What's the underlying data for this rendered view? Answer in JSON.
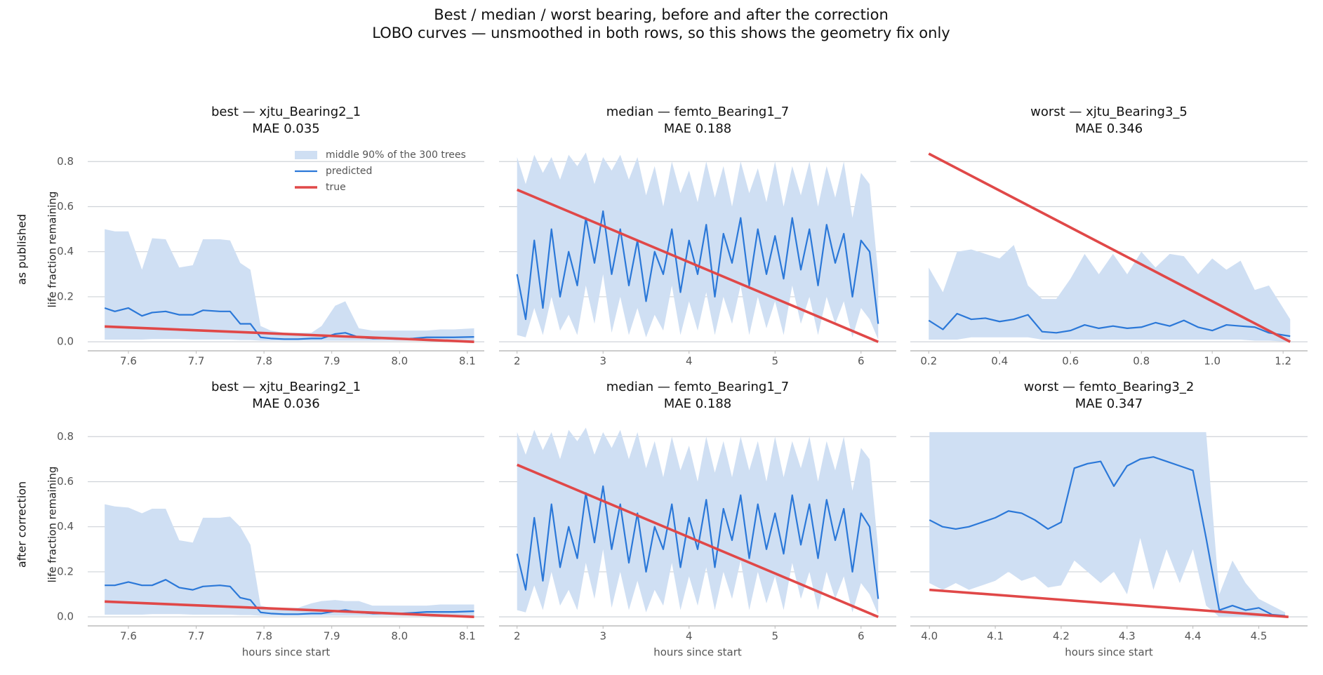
{
  "title": "Best / median / worst bearing, before and after the correction",
  "subtitle": "LOBO curves — unsmoothed in both rows, so this shows the geometry fix only",
  "row_labels": [
    "as published",
    "after correction"
  ],
  "chart_data": [
    {
      "type": "line",
      "title": "best — xjtu_Bearing2_1",
      "subtitle": "MAE 0.035",
      "ylabel": "life fraction remaining",
      "legend": "upper right",
      "x": [
        7.565,
        7.58,
        7.6,
        7.62,
        7.635,
        7.655,
        7.675,
        7.695,
        7.71,
        7.735,
        7.75,
        7.765,
        7.78,
        7.795,
        7.81,
        7.83,
        7.85,
        7.87,
        7.885,
        7.905,
        7.92,
        7.94,
        7.96,
        7.98,
        8.0,
        8.02,
        8.04,
        8.06,
        8.08,
        8.11
      ],
      "band": {
        "name": "middle 90% of the 300 trees",
        "color": "#cfdff3",
        "upper": [
          0.5,
          0.49,
          0.49,
          0.32,
          0.46,
          0.455,
          0.33,
          0.34,
          0.455,
          0.455,
          0.45,
          0.35,
          0.32,
          0.07,
          0.05,
          0.04,
          0.04,
          0.04,
          0.07,
          0.16,
          0.18,
          0.06,
          0.05,
          0.05,
          0.05,
          0.05,
          0.05,
          0.055,
          0.055,
          0.06
        ],
        "lower": [
          0.01,
          0.01,
          0.01,
          0.01,
          0.012,
          0.012,
          0.012,
          0.01,
          0.01,
          0.01,
          0.01,
          0.008,
          0.008,
          0.005,
          0.005,
          0.005,
          0.005,
          0.005,
          0.005,
          0.005,
          0.005,
          0.005,
          0.005,
          0.005,
          0.005,
          0.005,
          0.005,
          0.005,
          0.005,
          0.005
        ]
      },
      "series": [
        {
          "name": "predicted",
          "color": "#2b78d8",
          "values": [
            0.15,
            0.135,
            0.15,
            0.115,
            0.13,
            0.135,
            0.12,
            0.12,
            0.14,
            0.135,
            0.135,
            0.08,
            0.08,
            0.02,
            0.015,
            0.012,
            0.012,
            0.015,
            0.015,
            0.035,
            0.04,
            0.02,
            0.015,
            0.015,
            0.012,
            0.015,
            0.02,
            0.02,
            0.02,
            0.022
          ]
        },
        {
          "name": "true",
          "color": "#e04848",
          "x": [
            7.565,
            8.11
          ],
          "values": [
            0.068,
            0
          ]
        }
      ],
      "xlim": [
        7.54,
        8.125
      ],
      "ylim": [
        -0.04,
        0.86
      ],
      "xticks": [
        7.6,
        7.7,
        7.8,
        7.9,
        {
          "value": 8.0,
          "label": "8.0"
        },
        8.1
      ],
      "yticks": [
        {
          "value": 0,
          "label": "0.0"
        },
        0.2,
        0.4,
        0.6,
        0.8
      ],
      "grid": true
    },
    {
      "type": "line",
      "title": "median — femto_Bearing1_7",
      "subtitle": "MAE 0.188",
      "x": [
        2.0,
        2.1,
        2.2,
        2.3,
        2.4,
        2.5,
        2.6,
        2.7,
        2.8,
        2.9,
        3.0,
        3.1,
        3.2,
        3.3,
        3.4,
        3.5,
        3.6,
        3.7,
        3.8,
        3.9,
        4.0,
        4.1,
        4.2,
        4.3,
        4.4,
        4.5,
        4.6,
        4.7,
        4.8,
        4.9,
        5.0,
        5.1,
        5.2,
        5.3,
        5.4,
        5.5,
        5.6,
        5.7,
        5.8,
        5.9,
        6.0,
        6.1,
        6.2
      ],
      "band": {
        "color": "#cfdff3",
        "upper": [
          0.82,
          0.7,
          0.83,
          0.75,
          0.82,
          0.72,
          0.83,
          0.78,
          0.84,
          0.7,
          0.82,
          0.76,
          0.83,
          0.72,
          0.82,
          0.65,
          0.78,
          0.6,
          0.8,
          0.66,
          0.76,
          0.62,
          0.8,
          0.64,
          0.78,
          0.6,
          0.8,
          0.66,
          0.77,
          0.62,
          0.8,
          0.6,
          0.78,
          0.65,
          0.8,
          0.6,
          0.78,
          0.64,
          0.8,
          0.55,
          0.75,
          0.7,
          0.3
        ],
        "lower": [
          0.03,
          0.02,
          0.15,
          0.03,
          0.2,
          0.05,
          0.12,
          0.03,
          0.25,
          0.08,
          0.3,
          0.04,
          0.2,
          0.03,
          0.15,
          0.02,
          0.12,
          0.05,
          0.25,
          0.03,
          0.18,
          0.05,
          0.22,
          0.03,
          0.2,
          0.08,
          0.25,
          0.03,
          0.2,
          0.06,
          0.18,
          0.03,
          0.25,
          0.08,
          0.2,
          0.03,
          0.2,
          0.08,
          0.18,
          0.02,
          0.15,
          0.1,
          0.01
        ]
      },
      "series": [
        {
          "color": "#2b78d8",
          "values": [
            0.3,
            0.1,
            0.45,
            0.15,
            0.5,
            0.2,
            0.4,
            0.25,
            0.55,
            0.35,
            0.58,
            0.3,
            0.5,
            0.25,
            0.45,
            0.18,
            0.4,
            0.3,
            0.5,
            0.22,
            0.45,
            0.3,
            0.52,
            0.2,
            0.48,
            0.35,
            0.55,
            0.25,
            0.5,
            0.3,
            0.47,
            0.28,
            0.55,
            0.32,
            0.5,
            0.25,
            0.52,
            0.35,
            0.48,
            0.2,
            0.45,
            0.4,
            0.08
          ]
        },
        {
          "color": "#e04848",
          "x": [
            2.0,
            6.2
          ],
          "values": [
            0.675,
            0
          ]
        }
      ],
      "xlim": [
        1.79,
        6.41
      ],
      "ylim": [
        -0.04,
        0.86
      ],
      "xticks": [
        2,
        3,
        4,
        5,
        6
      ],
      "yticks": [
        {
          "value": 0,
          "label": "0.0"
        },
        0.2,
        0.4,
        0.6,
        0.8
      ],
      "grid": true
    },
    {
      "type": "line",
      "title": "worst — xjtu_Bearing3_5",
      "subtitle": "MAE 0.346",
      "x": [
        0.2,
        0.24,
        0.28,
        0.32,
        0.36,
        0.4,
        0.44,
        0.48,
        0.52,
        0.56,
        0.6,
        0.64,
        0.68,
        0.72,
        0.76,
        0.8,
        0.84,
        0.88,
        0.92,
        0.96,
        1.0,
        1.04,
        1.08,
        1.12,
        1.16,
        1.22
      ],
      "band": {
        "color": "#cfdff3",
        "upper": [
          0.33,
          0.22,
          0.4,
          0.41,
          0.39,
          0.37,
          0.43,
          0.25,
          0.19,
          0.19,
          0.28,
          0.39,
          0.3,
          0.39,
          0.3,
          0.4,
          0.33,
          0.39,
          0.38,
          0.3,
          0.37,
          0.32,
          0.36,
          0.23,
          0.25,
          0.1
        ],
        "lower": [
          0.01,
          0.01,
          0.01,
          0.02,
          0.02,
          0.02,
          0.02,
          0.02,
          0.01,
          0.01,
          0.01,
          0.01,
          0.01,
          0.01,
          0.01,
          0.01,
          0.01,
          0.01,
          0.01,
          0.01,
          0.01,
          0.01,
          0.01,
          0.005,
          0.005,
          0.0
        ]
      },
      "series": [
        {
          "color": "#2b78d8",
          "values": [
            0.095,
            0.055,
            0.125,
            0.1,
            0.105,
            0.09,
            0.1,
            0.12,
            0.045,
            0.04,
            0.05,
            0.075,
            0.06,
            0.07,
            0.06,
            0.065,
            0.085,
            0.07,
            0.095,
            0.065,
            0.05,
            0.075,
            0.07,
            0.065,
            0.04,
            0.025
          ]
        },
        {
          "color": "#e04848",
          "x": [
            0.2,
            1.22
          ],
          "values": [
            0.835,
            0
          ]
        }
      ],
      "xlim": [
        0.148,
        1.269
      ],
      "ylim": [
        -0.04,
        0.86
      ],
      "xticks": [
        0.2,
        0.4,
        0.6,
        0.8,
        {
          "value": 1.0,
          "label": "1.0"
        },
        1.2
      ],
      "yticks": [
        {
          "value": 0,
          "label": "0.0"
        },
        0.2,
        0.4,
        0.6,
        0.8
      ],
      "grid": true
    },
    {
      "type": "line",
      "title": "best — xjtu_Bearing2_1",
      "subtitle": "MAE 0.036",
      "ylabel": "life fraction remaining",
      "xlabel": "hours since start",
      "x": [
        7.565,
        7.58,
        7.6,
        7.62,
        7.635,
        7.655,
        7.675,
        7.695,
        7.71,
        7.735,
        7.75,
        7.765,
        7.78,
        7.795,
        7.81,
        7.83,
        7.85,
        7.87,
        7.885,
        7.905,
        7.92,
        7.94,
        7.96,
        7.98,
        8.0,
        8.02,
        8.04,
        8.06,
        8.08,
        8.11
      ],
      "band": {
        "color": "#cfdff3",
        "upper": [
          0.5,
          0.49,
          0.485,
          0.46,
          0.48,
          0.48,
          0.34,
          0.33,
          0.44,
          0.44,
          0.445,
          0.4,
          0.32,
          0.05,
          0.04,
          0.04,
          0.04,
          0.06,
          0.07,
          0.075,
          0.07,
          0.07,
          0.05,
          0.05,
          0.05,
          0.05,
          0.05,
          0.055,
          0.055,
          0.055
        ],
        "lower": [
          0.01,
          0.01,
          0.01,
          0.01,
          0.012,
          0.012,
          0.012,
          0.01,
          0.01,
          0.01,
          0.01,
          0.008,
          0.008,
          0.005,
          0.005,
          0.005,
          0.005,
          0.005,
          0.005,
          0.005,
          0.005,
          0.005,
          0.005,
          0.005,
          0.005,
          0.005,
          0.005,
          0.005,
          0.005,
          0.005
        ]
      },
      "series": [
        {
          "color": "#2b78d8",
          "values": [
            0.14,
            0.14,
            0.155,
            0.14,
            0.14,
            0.165,
            0.13,
            0.12,
            0.135,
            0.14,
            0.135,
            0.085,
            0.075,
            0.02,
            0.015,
            0.012,
            0.012,
            0.015,
            0.015,
            0.025,
            0.03,
            0.02,
            0.015,
            0.015,
            0.015,
            0.018,
            0.022,
            0.022,
            0.022,
            0.025
          ]
        },
        {
          "color": "#e04848",
          "x": [
            7.565,
            8.11
          ],
          "values": [
            0.068,
            0
          ]
        }
      ],
      "xlim": [
        7.54,
        8.125
      ],
      "ylim": [
        -0.04,
        0.86
      ],
      "xticks": [
        7.6,
        7.7,
        7.8,
        7.9,
        {
          "value": 8.0,
          "label": "8.0"
        },
        8.1
      ],
      "yticks": [
        {
          "value": 0,
          "label": "0.0"
        },
        0.2,
        0.4,
        0.6,
        0.8
      ],
      "grid": true
    },
    {
      "type": "line",
      "title": "median — femto_Bearing1_7",
      "subtitle": "MAE 0.188",
      "xlabel": "hours since start",
      "x": [
        2.0,
        2.1,
        2.2,
        2.3,
        2.4,
        2.5,
        2.6,
        2.7,
        2.8,
        2.9,
        3.0,
        3.1,
        3.2,
        3.3,
        3.4,
        3.5,
        3.6,
        3.7,
        3.8,
        3.9,
        4.0,
        4.1,
        4.2,
        4.3,
        4.4,
        4.5,
        4.6,
        4.7,
        4.8,
        4.9,
        5.0,
        5.1,
        5.2,
        5.3,
        5.4,
        5.5,
        5.6,
        5.7,
        5.8,
        5.9,
        6.0,
        6.1,
        6.2
      ],
      "band": {
        "color": "#cfdff3",
        "upper": [
          0.82,
          0.72,
          0.83,
          0.74,
          0.82,
          0.7,
          0.83,
          0.78,
          0.84,
          0.72,
          0.82,
          0.75,
          0.83,
          0.7,
          0.82,
          0.66,
          0.78,
          0.62,
          0.8,
          0.65,
          0.76,
          0.6,
          0.8,
          0.64,
          0.78,
          0.62,
          0.8,
          0.65,
          0.78,
          0.6,
          0.8,
          0.62,
          0.78,
          0.66,
          0.8,
          0.6,
          0.78,
          0.65,
          0.8,
          0.56,
          0.75,
          0.7,
          0.3
        ],
        "lower": [
          0.03,
          0.02,
          0.14,
          0.03,
          0.2,
          0.05,
          0.12,
          0.03,
          0.24,
          0.08,
          0.3,
          0.04,
          0.2,
          0.03,
          0.16,
          0.02,
          0.12,
          0.05,
          0.24,
          0.03,
          0.18,
          0.05,
          0.22,
          0.03,
          0.2,
          0.08,
          0.25,
          0.03,
          0.2,
          0.06,
          0.18,
          0.03,
          0.24,
          0.08,
          0.2,
          0.03,
          0.2,
          0.08,
          0.18,
          0.02,
          0.15,
          0.1,
          0.01
        ]
      },
      "series": [
        {
          "color": "#2b78d8",
          "values": [
            0.28,
            0.12,
            0.44,
            0.16,
            0.5,
            0.22,
            0.4,
            0.26,
            0.55,
            0.33,
            0.58,
            0.3,
            0.5,
            0.24,
            0.46,
            0.2,
            0.4,
            0.3,
            0.5,
            0.22,
            0.44,
            0.3,
            0.52,
            0.22,
            0.48,
            0.34,
            0.54,
            0.26,
            0.5,
            0.3,
            0.46,
            0.28,
            0.54,
            0.32,
            0.5,
            0.26,
            0.52,
            0.34,
            0.48,
            0.2,
            0.46,
            0.4,
            0.08
          ]
        },
        {
          "color": "#e04848",
          "x": [
            2.0,
            6.2
          ],
          "values": [
            0.675,
            0
          ]
        }
      ],
      "xlim": [
        1.79,
        6.41
      ],
      "ylim": [
        -0.04,
        0.86
      ],
      "xticks": [
        2,
        3,
        4,
        5,
        6
      ],
      "yticks": [
        {
          "value": 0,
          "label": "0.0"
        },
        0.2,
        0.4,
        0.6,
        0.8
      ],
      "grid": true
    },
    {
      "type": "line",
      "title": "worst — femto_Bearing3_2",
      "subtitle": "MAE 0.347",
      "xlabel": "hours since start",
      "x": [
        4.0,
        4.02,
        4.04,
        4.06,
        4.08,
        4.1,
        4.12,
        4.14,
        4.16,
        4.18,
        4.2,
        4.22,
        4.24,
        4.26,
        4.28,
        4.3,
        4.32,
        4.34,
        4.36,
        4.38,
        4.4,
        4.42,
        4.44,
        4.46,
        4.48,
        4.5,
        4.52,
        4.54
      ],
      "band": {
        "color": "#cfdff3",
        "upper": [
          0.82,
          0.82,
          0.82,
          0.82,
          0.82,
          0.82,
          0.82,
          0.82,
          0.82,
          0.82,
          0.82,
          0.82,
          0.82,
          0.82,
          0.82,
          0.82,
          0.82,
          0.82,
          0.82,
          0.82,
          0.82,
          0.82,
          0.1,
          0.25,
          0.15,
          0.08,
          0.05,
          0.02
        ],
        "lower": [
          0.15,
          0.12,
          0.15,
          0.12,
          0.14,
          0.16,
          0.2,
          0.16,
          0.18,
          0.13,
          0.14,
          0.25,
          0.2,
          0.15,
          0.2,
          0.1,
          0.35,
          0.12,
          0.3,
          0.15,
          0.3,
          0.05,
          0.0,
          0.0,
          0.0,
          0.0,
          0.0,
          0.0
        ]
      },
      "series": [
        {
          "color": "#2b78d8",
          "values": [
            0.43,
            0.4,
            0.39,
            0.4,
            0.42,
            0.44,
            0.47,
            0.46,
            0.43,
            0.39,
            0.42,
            0.66,
            0.68,
            0.69,
            0.58,
            0.67,
            0.7,
            0.71,
            0.69,
            0.67,
            0.65,
            0.35,
            0.03,
            0.05,
            0.03,
            0.04,
            0.01,
            0.005
          ]
        },
        {
          "color": "#e04848",
          "x": [
            4.0,
            4.545
          ],
          "values": [
            0.12,
            0.0
          ]
        }
      ],
      "xlim": [
        3.971,
        4.574
      ],
      "ylim": [
        -0.04,
        0.86
      ],
      "xticks": [
        {
          "value": 4.0,
          "label": "4.0"
        },
        4.1,
        4.2,
        4.3,
        4.4,
        4.5
      ],
      "yticks": [
        {
          "value": 0,
          "label": "0.0"
        },
        0.2,
        0.4,
        0.6,
        0.8
      ],
      "grid": true
    }
  ]
}
